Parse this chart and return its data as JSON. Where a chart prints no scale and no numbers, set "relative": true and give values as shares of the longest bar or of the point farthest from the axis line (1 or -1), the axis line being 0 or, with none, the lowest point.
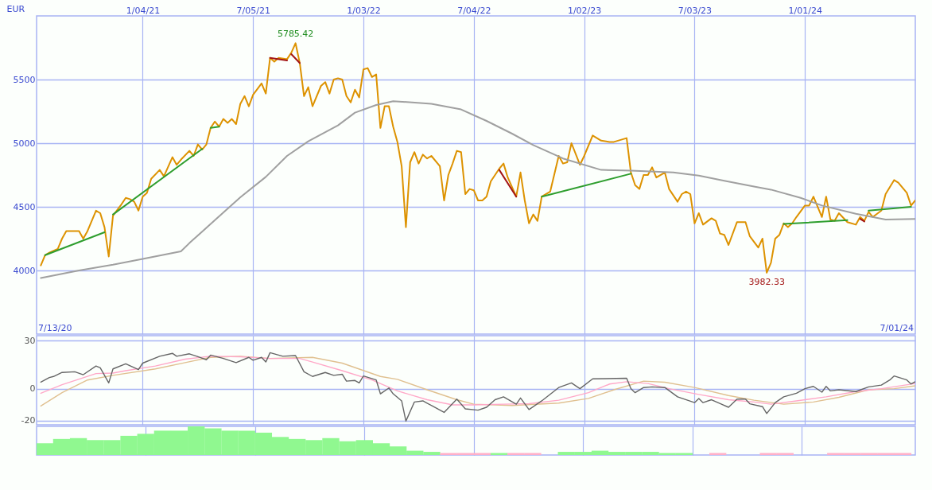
{
  "chart_data": [
    {
      "type": "line",
      "ylabel": "EUR",
      "annotations": [
        "7/13/20",
        "7/01/24",
        {
          "text": "5785.42",
          "x": "2021-09-13",
          "y": 5785.42
        },
        {
          "text": "3982.33",
          "x": "2023-10-30",
          "y": 3982.33
        }
      ],
      "x": [
        "2020-07-20",
        "2020-07-27",
        "2020-08-03",
        "2020-08-17",
        "2020-08-24",
        "2020-08-31",
        "2020-09-07",
        "2020-09-21",
        "2020-09-28",
        "2020-10-05",
        "2020-10-19",
        "2020-10-26",
        "2020-11-02",
        "2020-11-09",
        "2020-11-16",
        "2020-11-30",
        "2020-12-07",
        "2020-12-14",
        "2020-12-21",
        "2020-12-28",
        "2021-01-04",
        "2021-01-11",
        "2021-01-18",
        "2021-02-01",
        "2021-02-08",
        "2021-02-22",
        "2021-03-01",
        "2021-03-08",
        "2021-03-22",
        "2021-03-29",
        "2021-04-05",
        "2021-04-12",
        "2021-04-19",
        "2021-04-26",
        "2021-05-03",
        "2021-05-10",
        "2021-05-17",
        "2021-05-24",
        "2021-05-31",
        "2021-06-07",
        "2021-06-14",
        "2021-06-21",
        "2021-06-28",
        "2021-07-05",
        "2021-07-19",
        "2021-07-26",
        "2021-08-02",
        "2021-08-09",
        "2021-08-16",
        "2021-08-30",
        "2021-09-06",
        "2021-09-13",
        "2021-09-20",
        "2021-09-27",
        "2021-10-04",
        "2021-10-11",
        "2021-10-25",
        "2021-11-01",
        "2021-11-08",
        "2021-11-15",
        "2021-11-22",
        "2021-11-29",
        "2021-12-06",
        "2021-12-13",
        "2021-12-20",
        "2021-12-27",
        "2022-01-03",
        "2022-01-10",
        "2022-01-17",
        "2022-01-24",
        "2022-01-31",
        "2022-02-07",
        "2022-02-14",
        "2022-02-21",
        "2022-02-28",
        "2022-03-07",
        "2022-03-14",
        "2022-03-21",
        "2022-03-28",
        "2022-04-04",
        "2022-04-11",
        "2022-04-18",
        "2022-04-25",
        "2022-05-09",
        "2022-05-16",
        "2022-05-23",
        "2022-05-30",
        "2022-06-06",
        "2022-06-13",
        "2022-06-20",
        "2022-06-27",
        "2022-07-04",
        "2022-07-11",
        "2022-07-18",
        "2022-07-25",
        "2022-08-01",
        "2022-08-15",
        "2022-08-22",
        "2022-08-29",
        "2022-09-12",
        "2022-09-19",
        "2022-09-26",
        "2022-10-03",
        "2022-10-10",
        "2022-10-17",
        "2022-10-24",
        "2022-11-07",
        "2022-11-21",
        "2022-11-28",
        "2022-12-05",
        "2022-12-12",
        "2022-12-26",
        "2023-01-02",
        "2023-01-16",
        "2023-01-30",
        "2023-02-13",
        "2023-02-20",
        "2023-03-13",
        "2023-03-20",
        "2023-03-27",
        "2023-04-03",
        "2023-04-10",
        "2023-04-17",
        "2023-04-24",
        "2023-05-01",
        "2023-05-15",
        "2023-05-22",
        "2023-06-05",
        "2023-06-12",
        "2023-06-19",
        "2023-06-26",
        "2023-07-03",
        "2023-07-10",
        "2023-07-17",
        "2023-07-31",
        "2023-08-07",
        "2023-08-14",
        "2023-08-21",
        "2023-08-28",
        "2023-09-11",
        "2023-09-25",
        "2023-10-02",
        "2023-10-16",
        "2023-10-23",
        "2023-10-30",
        "2023-11-06",
        "2023-11-13",
        "2023-11-20",
        "2023-11-27",
        "2023-12-04",
        "2023-12-11",
        "2023-12-18",
        "2024-01-01",
        "2024-01-08",
        "2024-01-15",
        "2024-01-29",
        "2024-02-05",
        "2024-02-12",
        "2024-02-19",
        "2024-02-26",
        "2024-03-11",
        "2024-03-25",
        "2024-04-01",
        "2024-04-08",
        "2024-04-15",
        "2024-04-22",
        "2024-05-06",
        "2024-05-13",
        "2024-05-27",
        "2024-06-03",
        "2024-06-17",
        "2024-06-24",
        "2024-07-01"
      ],
      "series": [
        {
          "color": "#dd9200",
          "values": [
            4040,
            4120,
            4140,
            4170,
            4250,
            4310,
            4310,
            4310,
            4250,
            4310,
            4470,
            4450,
            4340,
            4110,
            4430,
            4520,
            4570,
            4560,
            4540,
            4470,
            4580,
            4610,
            4720,
            4790,
            4740,
            4890,
            4830,
            4870,
            4940,
            4900,
            4990,
            4950,
            4990,
            5120,
            5170,
            5130,
            5190,
            5160,
            5190,
            5150,
            5310,
            5370,
            5290,
            5380,
            5470,
            5390,
            5670,
            5640,
            5670,
            5660,
            5710,
            5785.42,
            5630,
            5370,
            5440,
            5290,
            5450,
            5480,
            5390,
            5500,
            5510,
            5500,
            5370,
            5320,
            5420,
            5360,
            5580,
            5590,
            5520,
            5540,
            5120,
            5290,
            5290,
            5130,
            5010,
            4820,
            4340,
            4850,
            4930,
            4840,
            4910,
            4880,
            4900,
            4820,
            4550,
            4750,
            4840,
            4940,
            4930,
            4600,
            4640,
            4630,
            4550,
            4550,
            4580,
            4700,
            4800,
            4840,
            4730,
            4580,
            4770,
            4550,
            4370,
            4440,
            4390,
            4580,
            4620,
            4900,
            4840,
            4850,
            5000,
            4830,
            4900,
            5060,
            5020,
            5010,
            5010,
            5040,
            4770,
            4670,
            4640,
            4750,
            4750,
            4810,
            4730,
            4770,
            4640,
            4540,
            4600,
            4620,
            4600,
            4370,
            4450,
            4360,
            4410,
            4390,
            4290,
            4280,
            4200,
            4380,
            4380,
            4270,
            4180,
            4250,
            3982.33,
            4060,
            4250,
            4280,
            4370,
            4340,
            4370,
            4420,
            4510,
            4510,
            4580,
            4420,
            4580,
            4400,
            4390,
            4450,
            4380,
            4360,
            4420,
            4390,
            4460,
            4420,
            4470,
            4600,
            4710,
            4690,
            4610,
            4510,
            4550
          ]
        },
        {
          "color": "#a0a0a0",
          "x": [
            "2020-07-20",
            "2020-09-21",
            "2020-11-16",
            "2021-01-04",
            "2021-03-08",
            "2021-03-22",
            "2021-05-03",
            "2021-06-14",
            "2021-07-26",
            "2021-08-30",
            "2021-10-04",
            "2021-11-22",
            "2021-12-20",
            "2022-01-24",
            "2022-02-21",
            "2022-04-25",
            "2022-06-13",
            "2022-07-25",
            "2022-09-05",
            "2022-10-10",
            "2022-11-28",
            "2023-01-30",
            "2023-03-20",
            "2023-05-29",
            "2023-07-10",
            "2023-08-21",
            "2023-10-09",
            "2023-11-06",
            "2023-12-25",
            "2024-01-29",
            "2024-03-25",
            "2024-05-13",
            "2024-07-01"
          ],
          "values": [
            3940,
            4000,
            4045,
            4090,
            4150,
            4215,
            4395,
            4575,
            4735,
            4900,
            5015,
            5140,
            5240,
            5300,
            5330,
            5310,
            5265,
            5175,
            5075,
            4985,
            4880,
            4790,
            4785,
            4770,
            4745,
            4705,
            4660,
            4635,
            4570,
            4510,
            4445,
            4400,
            4405
          ]
        },
        {
          "color": "#2e9e2e",
          "x": [
            "2020-07-27",
            "2020-11-02"
          ],
          "values": [
            4120,
            4300
          ]
        },
        {
          "color": "#2e9e2e",
          "x": [
            "2020-11-16",
            "2021-04-12"
          ],
          "values": [
            4440,
            4955
          ]
        },
        {
          "color": "#2e9e2e",
          "x": [
            "2021-04-26",
            "2021-05-10"
          ],
          "values": [
            5120,
            5130
          ]
        },
        {
          "color": "#a31515",
          "x": [
            "2021-08-02",
            "2021-08-30"
          ],
          "values": [
            5670,
            5650
          ]
        },
        {
          "color": "#a31515",
          "x": [
            "2021-09-06",
            "2021-09-20"
          ],
          "values": [
            5700,
            5630
          ]
        },
        {
          "color": "#a31515",
          "x": [
            "2022-08-15",
            "2022-09-12"
          ],
          "values": [
            4790,
            4580
          ]
        },
        {
          "color": "#2e9e2e",
          "x": [
            "2022-10-24",
            "2023-03-20"
          ],
          "values": [
            4580,
            4760
          ]
        },
        {
          "color": "#2e9e2e",
          "x": [
            "2023-11-27",
            "2024-03-11"
          ],
          "values": [
            4365,
            4395
          ]
        },
        {
          "color": "#a31515",
          "x": [
            "2024-04-01",
            "2024-04-08"
          ],
          "values": [
            4405,
            4385
          ]
        },
        {
          "color": "#2e9e2e",
          "x": [
            "2024-04-15",
            "2024-06-24"
          ],
          "values": [
            4470,
            4500
          ]
        }
      ],
      "xlim": [
        "2020-07-13",
        "2024-07-01"
      ],
      "xticks": [
        {
          "value": "2021-01-04",
          "label": "1/04/21"
        },
        {
          "value": "2021-07-05",
          "label": "7/05/21"
        },
        {
          "value": "2022-01-03",
          "label": "1/03/22"
        },
        {
          "value": "2022-07-04",
          "label": "7/04/22"
        },
        {
          "value": "2023-01-02",
          "label": "1/02/23"
        },
        {
          "value": "2023-07-03",
          "label": "7/03/23"
        },
        {
          "value": "2024-01-01",
          "label": "1/01/24"
        }
      ],
      "ylim": [
        3500,
        6000
      ],
      "yticks": [
        4000,
        4500,
        5000,
        5500
      ],
      "grid": true
    },
    {
      "type": "line",
      "series": [
        {
          "color": "#e0c090",
          "x": [
            "2020-07-20",
            "2020-08-24",
            "2020-10-05",
            "2020-11-16",
            "2021-01-25",
            "2021-03-15",
            "2021-04-26",
            "2021-06-14",
            "2021-08-02",
            "2021-10-11",
            "2021-11-29",
            "2022-01-31",
            "2022-02-28",
            "2022-04-18",
            "2022-06-06",
            "2022-07-04",
            "2022-09-05",
            "2022-11-21",
            "2023-01-09",
            "2023-02-20",
            "2023-04-10",
            "2023-05-15",
            "2023-07-03",
            "2023-08-28",
            "2023-10-09",
            "2023-11-27",
            "2024-01-15",
            "2024-02-26",
            "2024-04-15",
            "2024-05-27",
            "2024-07-01"
          ],
          "values": [
            -10.8,
            -2.5,
            5.4,
            8.3,
            12.3,
            16.2,
            19.5,
            20.2,
            18.8,
            19.5,
            15.9,
            7.6,
            5.8,
            -0.7,
            -6.9,
            -9.7,
            -10.5,
            -9,
            -6.1,
            -0.7,
            4.7,
            4,
            0.7,
            -4.3,
            -7.2,
            -9.7,
            -8.3,
            -5.4,
            -0.7,
            0,
            1.8
          ]
        },
        {
          "color": "#ffa8c8",
          "x": [
            "2020-07-20",
            "2020-08-24",
            "2020-10-19",
            "2020-11-16",
            "2020-12-07",
            "2021-01-25",
            "2021-03-15",
            "2021-04-26",
            "2021-06-14",
            "2021-08-02",
            "2021-09-20",
            "2021-10-11",
            "2021-11-29",
            "2022-01-17",
            "2022-02-28",
            "2022-04-18",
            "2022-05-30",
            "2022-07-04",
            "2022-08-22",
            "2022-10-03",
            "2022-11-21",
            "2023-01-09",
            "2023-02-13",
            "2023-03-13",
            "2023-04-17",
            "2023-05-22",
            "2023-07-10",
            "2023-08-28",
            "2023-10-09",
            "2023-11-06",
            "2023-12-18",
            "2024-02-05",
            "2024-03-25",
            "2024-05-06",
            "2024-07-01"
          ],
          "values": [
            -2.9,
            2.5,
            9.4,
            9.7,
            11.2,
            14.1,
            18.4,
            20.2,
            19.9,
            18.8,
            18.8,
            16.6,
            11.2,
            5.4,
            -1.4,
            -6.9,
            -10.1,
            -10.1,
            -9.7,
            -9.4,
            -7.2,
            -2.5,
            2.9,
            4.3,
            3.2,
            0,
            -3.6,
            -6.9,
            -8.3,
            -9.7,
            -7.6,
            -5.1,
            -1.8,
            0,
            3.2
          ]
        },
        {
          "color": "#666666",
          "x": [
            "2020-07-20",
            "2020-08-03",
            "2020-08-10",
            "2020-08-24",
            "2020-09-14",
            "2020-09-28",
            "2020-10-19",
            "2020-10-26",
            "2020-11-09",
            "2020-11-16",
            "2020-12-07",
            "2020-12-28",
            "2021-01-04",
            "2021-02-01",
            "2021-02-22",
            "2021-03-01",
            "2021-03-22",
            "2021-04-05",
            "2021-04-19",
            "2021-04-26",
            "2021-05-17",
            "2021-06-07",
            "2021-06-28",
            "2021-07-05",
            "2021-07-19",
            "2021-07-26",
            "2021-08-02",
            "2021-08-23",
            "2021-09-13",
            "2021-09-27",
            "2021-10-11",
            "2021-11-01",
            "2021-11-15",
            "2021-11-29",
            "2021-12-06",
            "2021-12-20",
            "2021-12-27",
            "2022-01-03",
            "2022-01-24",
            "2022-01-31",
            "2022-02-14",
            "2022-02-21",
            "2022-03-07",
            "2022-03-14",
            "2022-03-28",
            "2022-04-11",
            "2022-04-18",
            "2022-05-16",
            "2022-06-06",
            "2022-06-20",
            "2022-07-11",
            "2022-07-25",
            "2022-08-08",
            "2022-08-22",
            "2022-09-12",
            "2022-09-19",
            "2022-10-03",
            "2022-10-24",
            "2022-11-21",
            "2022-12-12",
            "2022-12-26",
            "2023-01-16",
            "2023-03-13",
            "2023-03-20",
            "2023-03-27",
            "2023-04-10",
            "2023-04-24",
            "2023-05-15",
            "2023-06-05",
            "2023-07-03",
            "2023-07-10",
            "2023-07-17",
            "2023-07-31",
            "2023-08-28",
            "2023-09-11",
            "2023-09-25",
            "2023-10-02",
            "2023-10-23",
            "2023-10-30",
            "2023-11-13",
            "2023-11-27",
            "2023-12-18",
            "2024-01-01",
            "2024-01-15",
            "2024-01-29",
            "2024-02-05",
            "2024-02-12",
            "2024-02-26",
            "2024-03-25",
            "2024-04-15",
            "2024-05-06",
            "2024-05-20",
            "2024-05-27",
            "2024-06-17",
            "2024-06-24",
            "2024-07-01"
          ],
          "values": [
            4.1,
            6.9,
            7.6,
            10.1,
            10.5,
            8.7,
            14.1,
            13,
            3.6,
            12.3,
            15.5,
            11.9,
            15.9,
            20.2,
            22,
            20.2,
            21.7,
            19.9,
            18,
            20.9,
            18.8,
            16.2,
            19.5,
            17.7,
            19.5,
            16.6,
            22.4,
            20.2,
            20.6,
            10.5,
            7.6,
            10.1,
            8.3,
            9,
            4.7,
            5.1,
            3.6,
            7.9,
            5.4,
            -3.2,
            0.4,
            -3.2,
            -7.6,
            -20.2,
            -8.3,
            -7.6,
            -9,
            -14.8,
            -6.5,
            -12.6,
            -13.4,
            -11.6,
            -6.9,
            -5.1,
            -9.7,
            -5.8,
            -13,
            -7.6,
            0.7,
            3.6,
            0,
            6.1,
            6.5,
            0,
            -2.5,
            0.7,
            1.1,
            0.7,
            -5.1,
            -8.7,
            -6.1,
            -8.7,
            -6.9,
            -11.6,
            -6.5,
            -6.5,
            -9.4,
            -11.2,
            -15.5,
            -8.7,
            -5.1,
            -2.9,
            0,
            1.4,
            -2.2,
            1.4,
            -1.4,
            -0.7,
            -1.8,
            1.1,
            2.2,
            5.4,
            7.9,
            5.4,
            2.9,
            4.3
          ]
        }
      ],
      "xlim": [
        "2020-07-13",
        "2024-07-01"
      ],
      "xticks": [
        {
          "value": "2021-01-04",
          "label": null
        },
        {
          "value": "2021-07-05",
          "label": null
        },
        {
          "value": "2022-01-03",
          "label": null
        },
        {
          "value": "2022-07-04",
          "label": null
        },
        {
          "value": "2023-01-02",
          "label": null
        },
        {
          "value": "2023-07-03",
          "label": null
        },
        {
          "value": "2024-01-01",
          "label": null
        }
      ],
      "ylim": [
        -22.5,
        33
      ],
      "yticks": [
        -20,
        0,
        30
      ],
      "grid": true,
      "tick_labels": "y"
    },
    {
      "type": "bar",
      "relative": true,
      "x": [
        "2020-07-20",
        "2020-08-17",
        "2020-09-14",
        "2020-10-12",
        "2020-11-09",
        "2020-12-07",
        "2021-01-04",
        "2021-02-01",
        "2021-03-01",
        "2021-03-29",
        "2021-04-26",
        "2021-05-24",
        "2021-06-21",
        "2021-07-19",
        "2021-08-16",
        "2021-09-13",
        "2021-10-11",
        "2021-11-08",
        "2021-12-06",
        "2022-01-03",
        "2022-01-31",
        "2022-02-28",
        "2022-03-28",
        "2022-04-25",
        "2022-05-23",
        "2022-06-20",
        "2022-07-18",
        "2022-08-15",
        "2022-09-12",
        "2022-10-10",
        "2022-11-07",
        "2022-12-05",
        "2023-01-02",
        "2023-01-30",
        "2023-02-27",
        "2023-03-27",
        "2023-04-24",
        "2023-05-22",
        "2023-06-19",
        "2023-07-17",
        "2023-08-14",
        "2023-09-11",
        "2023-10-09",
        "2023-11-06",
        "2023-12-04",
        "2024-01-01",
        "2024-01-29",
        "2024-02-26",
        "2024-03-25",
        "2024-04-22",
        "2024-05-20",
        "2024-06-17"
      ],
      "series": [
        {
          "values": [
            0.41,
            0.56,
            0.59,
            0.52,
            0.52,
            0.67,
            0.74,
            0.85,
            0.85,
            1,
            0.93,
            0.85,
            0.85,
            0.78,
            0.63,
            0.56,
            0.52,
            0.59,
            0.48,
            0.52,
            0.41,
            0.3,
            0.15,
            0.11,
            0.07,
            0.07,
            0.07,
            0.07,
            0.07,
            0.07,
            null,
            0.11,
            0.11,
            0.15,
            0.11,
            0.11,
            0.11,
            0.07,
            0.07,
            null,
            0.07,
            null,
            null,
            0.07,
            0.07,
            null,
            null,
            0.07,
            0.07,
            0.07,
            0.07,
            0.07
          ],
          "colors": [
            "#90f890",
            "#90f890",
            "#90f890",
            "#90f890",
            "#90f890",
            "#90f890",
            "#90f890",
            "#90f890",
            "#90f890",
            "#90f890",
            "#90f890",
            "#90f890",
            "#90f890",
            "#90f890",
            "#90f890",
            "#90f890",
            "#90f890",
            "#90f890",
            "#90f890",
            "#90f890",
            "#90f890",
            "#90f890",
            "#90f890",
            "#90f890",
            "#ffb0c8",
            "#ffb0c8",
            "#ffb0c8",
            "#90f890",
            "#ffb0c8",
            "#ffb0c8",
            "#90f890",
            "#90f890",
            "#90f890",
            "#90f890",
            "#90f890",
            "#90f890",
            "#90f890",
            "#90f890",
            "#90f890",
            "#ffb0c8",
            "#ffb0c8",
            "#ffb0c8",
            "#ffb0c8",
            "#ffb0c8",
            "#ffb0c8",
            "#ffb0c8",
            "#ffb0c8",
            "#ffb0c8",
            "#ffb0c8",
            "#ffb0c8",
            "#ffb0c8",
            "#ffb0c8"
          ]
        }
      ],
      "xlim": [
        "2020-07-13",
        "2024-07-01"
      ],
      "xticks": [
        {
          "value": "2021-01-04",
          "label": null
        },
        {
          "value": "2021-07-05",
          "label": null
        },
        {
          "value": "2022-01-03",
          "label": null
        },
        {
          "value": "2022-07-04",
          "label": null
        },
        {
          "value": "2023-01-02",
          "label": null
        },
        {
          "value": "2023-07-03",
          "label": null
        },
        {
          "value": "2024-01-01",
          "label": null
        }
      ],
      "grid": "x",
      "tick_labels": false
    }
  ]
}
